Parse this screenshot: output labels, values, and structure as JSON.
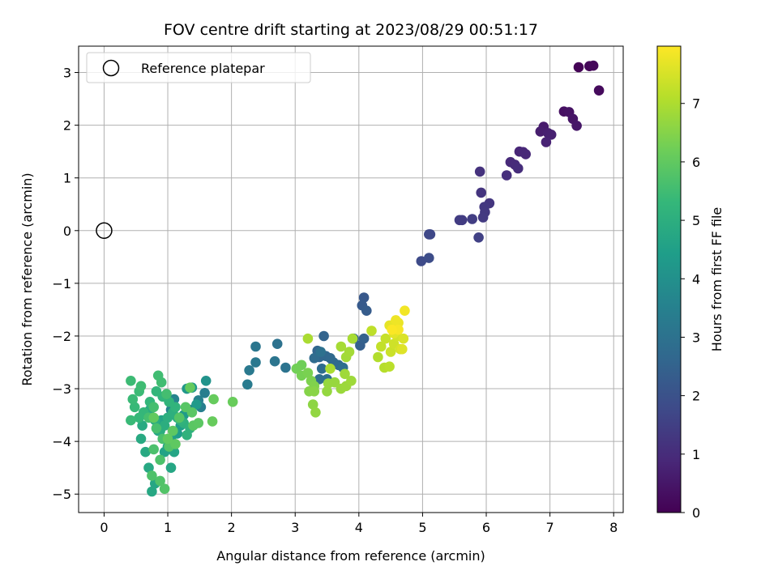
{
  "chart_data": {
    "type": "scatter",
    "title": "FOV centre drift starting at 2023/08/29 00:51:17",
    "xlabel": "Angular distance from reference (arcmin)",
    "ylabel": "Rotation from reference (arcmin)",
    "xlim": [
      -0.4,
      8.15
    ],
    "ylim": [
      -5.35,
      3.5
    ],
    "xticks": [
      0,
      1,
      2,
      3,
      4,
      5,
      6,
      7,
      8
    ],
    "yticks": [
      -5,
      -4,
      -3,
      -2,
      -1,
      0,
      1,
      2,
      3
    ],
    "xtick_labels": [
      "0",
      "1",
      "2",
      "3",
      "4",
      "5",
      "6",
      "7",
      "8"
    ],
    "ytick_labels": [
      "−5",
      "−4",
      "−3",
      "−2",
      "−1",
      "0",
      "1",
      "2",
      "3"
    ],
    "grid": true,
    "colormap": "viridis",
    "colorbar": {
      "label": "Hours from first FF file",
      "range": [
        0,
        7.98
      ],
      "ticks": [
        0,
        1,
        2,
        3,
        4,
        5,
        6,
        7
      ],
      "tick_labels": [
        "0",
        "1",
        "2",
        "3",
        "4",
        "5",
        "6",
        "7"
      ]
    },
    "legend": {
      "placement": "top-left",
      "entries": [
        {
          "label": "Reference platepar",
          "marker": "open-circle"
        }
      ]
    },
    "reference_point": {
      "x": 0,
      "y": 0
    },
    "series": [
      {
        "points": [
          [
            7.45,
            3.1,
            0.05
          ],
          [
            7.62,
            3.12,
            0.1
          ],
          [
            7.68,
            3.13,
            0.15
          ],
          [
            7.77,
            2.66,
            0.2
          ],
          [
            7.22,
            2.26,
            0.35
          ],
          [
            7.3,
            2.25,
            0.4
          ],
          [
            7.36,
            2.12,
            0.45
          ],
          [
            7.42,
            1.99,
            0.5
          ],
          [
            6.9,
            1.97,
            0.6
          ],
          [
            6.85,
            1.88,
            0.65
          ],
          [
            6.97,
            1.85,
            0.7
          ],
          [
            7.02,
            1.82,
            0.72
          ],
          [
            6.94,
            1.68,
            0.78
          ],
          [
            6.52,
            1.5,
            0.85
          ],
          [
            6.58,
            1.49,
            0.88
          ],
          [
            6.62,
            1.45,
            0.9
          ],
          [
            6.38,
            1.3,
            0.95
          ],
          [
            6.45,
            1.25,
            1.0
          ],
          [
            6.5,
            1.18,
            1.02
          ],
          [
            6.32,
            1.05,
            1.08
          ],
          [
            5.9,
            1.12,
            1.15
          ],
          [
            5.92,
            0.72,
            1.2
          ],
          [
            6.05,
            0.52,
            1.25
          ],
          [
            5.97,
            0.45,
            1.3
          ],
          [
            5.98,
            0.35,
            1.32
          ],
          [
            5.95,
            0.25,
            1.35
          ],
          [
            5.58,
            0.2,
            1.4
          ],
          [
            5.62,
            0.2,
            1.42
          ],
          [
            5.78,
            0.22,
            1.45
          ],
          [
            5.88,
            -0.13,
            1.55
          ],
          [
            5.12,
            -0.07,
            1.7
          ],
          [
            5.1,
            -0.07,
            1.72
          ],
          [
            4.98,
            -0.58,
            1.8
          ],
          [
            5.1,
            -0.52,
            1.85
          ],
          [
            4.08,
            -1.27,
            2.2
          ],
          [
            4.05,
            -1.42,
            2.25
          ],
          [
            4.12,
            -1.52,
            2.3
          ],
          [
            4.02,
            -2.18,
            2.4
          ],
          [
            4.08,
            -2.05,
            2.45
          ],
          [
            3.92,
            -2.05,
            2.5
          ],
          [
            3.45,
            -2.0,
            2.55
          ],
          [
            3.35,
            -2.28,
            2.6
          ],
          [
            3.38,
            -2.4,
            2.62
          ],
          [
            3.48,
            -2.38,
            2.65
          ],
          [
            3.55,
            -2.42,
            2.7
          ],
          [
            3.6,
            -2.5,
            2.72
          ],
          [
            3.68,
            -2.55,
            2.75
          ],
          [
            3.3,
            -2.42,
            2.78
          ],
          [
            3.42,
            -2.62,
            2.8
          ],
          [
            3.38,
            -2.82,
            2.85
          ],
          [
            3.5,
            -2.82,
            2.88
          ],
          [
            3.75,
            -2.6,
            2.9
          ],
          [
            3.4,
            -2.3,
            2.95
          ],
          [
            2.72,
            -2.15,
            3.0
          ],
          [
            2.85,
            -2.6,
            3.05
          ],
          [
            2.68,
            -2.48,
            3.1
          ],
          [
            2.38,
            -2.2,
            3.15
          ],
          [
            2.38,
            -2.5,
            3.2
          ],
          [
            2.28,
            -2.65,
            3.25
          ],
          [
            2.25,
            -2.92,
            3.3
          ],
          [
            1.58,
            -3.08,
            3.4
          ],
          [
            1.52,
            -3.35,
            3.45
          ],
          [
            1.48,
            -3.22,
            3.5
          ],
          [
            1.35,
            -3.4,
            3.55
          ],
          [
            1.1,
            -3.2,
            3.6
          ],
          [
            1.05,
            -3.4,
            3.65
          ],
          [
            1.6,
            -2.85,
            4.1
          ],
          [
            1.3,
            -3.0,
            4.2
          ],
          [
            1.38,
            -2.98,
            4.25
          ],
          [
            1.45,
            -3.3,
            4.3
          ],
          [
            1.25,
            -3.5,
            4.35
          ],
          [
            1.2,
            -3.7,
            4.4
          ],
          [
            1.15,
            -3.85,
            4.45
          ],
          [
            1.05,
            -3.95,
            4.5
          ],
          [
            1.0,
            -4.1,
            4.55
          ],
          [
            0.95,
            -4.2,
            4.6
          ],
          [
            0.9,
            -3.6,
            4.62
          ],
          [
            0.85,
            -3.8,
            4.65
          ],
          [
            1.1,
            -4.2,
            4.68
          ],
          [
            1.05,
            -4.5,
            4.7
          ],
          [
            0.8,
            -4.8,
            4.72
          ],
          [
            0.75,
            -4.95,
            4.75
          ],
          [
            0.7,
            -4.5,
            4.78
          ],
          [
            0.65,
            -4.2,
            4.8
          ],
          [
            0.58,
            -3.95,
            4.82
          ],
          [
            0.6,
            -3.7,
            4.85
          ],
          [
            0.7,
            -3.5,
            4.88
          ],
          [
            0.72,
            -3.4,
            4.9
          ],
          [
            0.8,
            -3.6,
            4.92
          ],
          [
            0.88,
            -3.8,
            4.95
          ],
          [
            0.95,
            -3.7,
            4.97
          ],
          [
            1.0,
            -3.55,
            5.0
          ],
          [
            1.08,
            -3.45,
            5.02
          ],
          [
            1.15,
            -3.55,
            5.05
          ],
          [
            1.25,
            -3.65,
            5.08
          ],
          [
            1.35,
            -3.75,
            5.1
          ],
          [
            1.3,
            -3.88,
            5.12
          ],
          [
            1.2,
            -3.6,
            5.15
          ],
          [
            1.12,
            -3.35,
            5.18
          ],
          [
            1.02,
            -3.25,
            5.2
          ],
          [
            0.92,
            -3.15,
            5.22
          ],
          [
            0.82,
            -3.05,
            5.25
          ],
          [
            0.72,
            -3.25,
            5.28
          ],
          [
            0.62,
            -3.45,
            5.3
          ],
          [
            0.55,
            -3.55,
            5.32
          ],
          [
            0.48,
            -3.35,
            5.35
          ],
          [
            0.42,
            -3.6,
            5.38
          ],
          [
            0.45,
            -3.2,
            5.4
          ],
          [
            0.55,
            -3.05,
            5.42
          ],
          [
            0.42,
            -2.85,
            5.45
          ],
          [
            0.58,
            -2.95,
            5.48
          ],
          [
            0.85,
            -2.75,
            5.5
          ],
          [
            0.9,
            -2.88,
            5.52
          ],
          [
            0.98,
            -3.1,
            5.55
          ],
          [
            0.78,
            -3.35,
            5.58
          ],
          [
            0.7,
            -3.55,
            5.6
          ],
          [
            0.82,
            -3.75,
            5.62
          ],
          [
            0.92,
            -3.95,
            5.65
          ],
          [
            0.78,
            -4.15,
            5.68
          ],
          [
            0.88,
            -4.35,
            5.7
          ],
          [
            0.75,
            -4.65,
            5.72
          ],
          [
            0.88,
            -4.75,
            5.75
          ],
          [
            0.95,
            -4.9,
            5.78
          ],
          [
            1.02,
            -4.1,
            5.8
          ],
          [
            1.18,
            -3.55,
            5.82
          ],
          [
            1.28,
            -3.35,
            5.85
          ],
          [
            1.38,
            -3.45,
            5.88
          ],
          [
            1.4,
            -3.7,
            5.9
          ],
          [
            1.48,
            -3.65,
            5.92
          ],
          [
            1.08,
            -3.8,
            5.95
          ],
          [
            1.12,
            -4.05,
            5.97
          ],
          [
            1.0,
            -3.95,
            6.0
          ],
          [
            0.78,
            -3.55,
            6.02
          ],
          [
            1.35,
            -2.98,
            6.05
          ],
          [
            1.72,
            -3.2,
            6.08
          ],
          [
            1.7,
            -3.62,
            6.1
          ],
          [
            2.02,
            -3.25,
            6.12
          ],
          [
            3.1,
            -2.55,
            6.2
          ],
          [
            3.02,
            -2.62,
            6.25
          ],
          [
            3.1,
            -2.75,
            6.3
          ],
          [
            3.2,
            -2.7,
            6.35
          ],
          [
            3.25,
            -2.85,
            6.4
          ],
          [
            3.3,
            -2.95,
            6.45
          ],
          [
            3.22,
            -3.05,
            6.5
          ],
          [
            3.3,
            -3.05,
            6.55
          ],
          [
            3.28,
            -3.3,
            6.6
          ],
          [
            3.32,
            -3.45,
            6.65
          ],
          [
            3.5,
            -3.05,
            6.68
          ],
          [
            3.52,
            -2.9,
            6.7
          ],
          [
            3.62,
            -2.88,
            6.72
          ],
          [
            3.72,
            -3.0,
            6.75
          ],
          [
            3.8,
            -2.95,
            6.78
          ],
          [
            3.88,
            -2.85,
            6.8
          ],
          [
            3.78,
            -2.72,
            6.82
          ],
          [
            3.8,
            -2.4,
            6.85
          ],
          [
            3.85,
            -2.3,
            6.88
          ],
          [
            3.72,
            -2.2,
            6.9
          ],
          [
            3.9,
            -2.05,
            6.92
          ],
          [
            3.2,
            -2.05,
            6.95
          ],
          [
            3.55,
            -2.62,
            6.97
          ],
          [
            4.3,
            -2.4,
            7.05
          ],
          [
            4.4,
            -2.6,
            7.1
          ],
          [
            4.48,
            -2.58,
            7.15
          ],
          [
            4.2,
            -1.9,
            7.2
          ],
          [
            4.35,
            -2.2,
            7.25
          ],
          [
            4.42,
            -2.05,
            7.3
          ],
          [
            4.5,
            -2.3,
            7.35
          ],
          [
            4.55,
            -2.15,
            7.4
          ],
          [
            4.6,
            -2.0,
            7.45
          ],
          [
            4.65,
            -2.25,
            7.5
          ],
          [
            4.7,
            -2.05,
            7.55
          ],
          [
            4.68,
            -2.25,
            7.6
          ],
          [
            4.55,
            -1.95,
            7.65
          ],
          [
            4.48,
            -1.8,
            7.7
          ],
          [
            4.62,
            -1.75,
            7.75
          ],
          [
            4.58,
            -1.7,
            7.8
          ],
          [
            4.72,
            -1.52,
            7.85
          ],
          [
            4.62,
            -1.88,
            7.9
          ],
          [
            4.52,
            -1.88,
            7.95
          ]
        ]
      }
    ]
  }
}
